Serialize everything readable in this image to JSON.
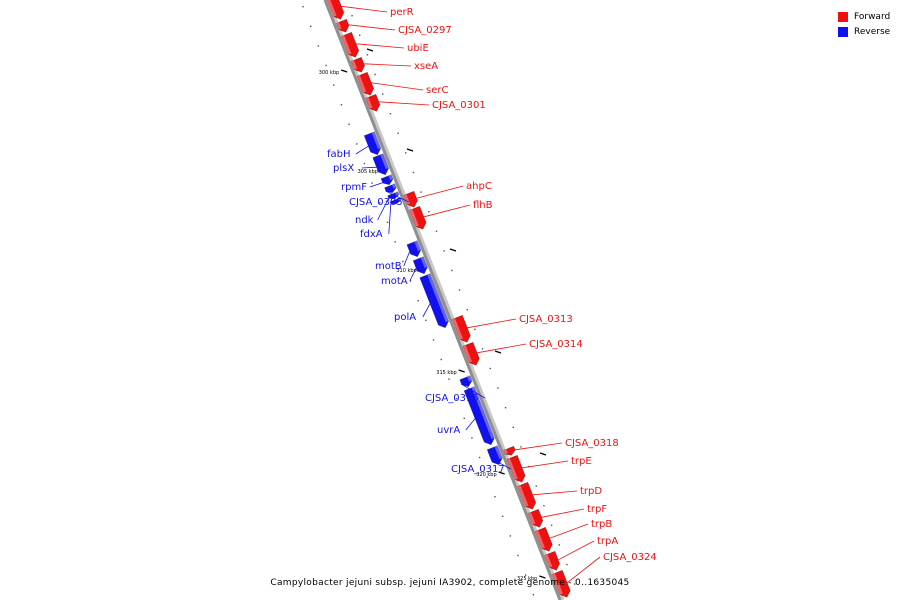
{
  "legend": {
    "forward_label": "Forward",
    "reverse_label": "Reverse",
    "forward_color": "#ee1111",
    "reverse_color": "#1111ee"
  },
  "caption": "Campylobacter jejuni subsp. jejuni IA3902, complete genome - 0..1635045",
  "ticks": [
    {
      "label": "300 kbp",
      "kbp": 300
    },
    {
      "label": "305 kbp",
      "kbp": 305
    },
    {
      "label": "310 kbp",
      "kbp": 310
    },
    {
      "label": "315 kbp",
      "kbp": 315
    },
    {
      "label": "320 kbp",
      "kbp": 320
    },
    {
      "label": "325 kbp",
      "kbp": 325
    }
  ],
  "genes": [
    {
      "name": "perR",
      "strand": "forward"
    },
    {
      "name": "CJSA_0297",
      "strand": "forward"
    },
    {
      "name": "ubiE",
      "strand": "forward"
    },
    {
      "name": "xseA",
      "strand": "forward"
    },
    {
      "name": "serC",
      "strand": "forward"
    },
    {
      "name": "CJSA_0301",
      "strand": "forward"
    },
    {
      "name": "fabH",
      "strand": "reverse"
    },
    {
      "name": "plsX",
      "strand": "reverse"
    },
    {
      "name": "rpmF",
      "strand": "reverse"
    },
    {
      "name": "CJSA_0305",
      "strand": "reverse"
    },
    {
      "name": "ndk",
      "strand": "reverse"
    },
    {
      "name": "fdxA",
      "strand": "reverse"
    },
    {
      "name": "ahpC",
      "strand": "forward"
    },
    {
      "name": "flhB",
      "strand": "forward"
    },
    {
      "name": "motB",
      "strand": "reverse"
    },
    {
      "name": "motA",
      "strand": "reverse"
    },
    {
      "name": "polA",
      "strand": "reverse"
    },
    {
      "name": "CJSA_0313",
      "strand": "forward"
    },
    {
      "name": "CJSA_0314",
      "strand": "forward"
    },
    {
      "name": "CJSA_0315",
      "strand": "reverse"
    },
    {
      "name": "uvrA",
      "strand": "reverse"
    },
    {
      "name": "CJSA_0317",
      "strand": "reverse"
    },
    {
      "name": "CJSA_0318",
      "strand": "forward"
    },
    {
      "name": "trpE",
      "strand": "forward"
    },
    {
      "name": "trpD",
      "strand": "forward"
    },
    {
      "name": "trpF",
      "strand": "forward"
    },
    {
      "name": "trpB",
      "strand": "forward"
    },
    {
      "name": "trpA",
      "strand": "forward"
    },
    {
      "name": "CJSA_0324",
      "strand": "forward"
    }
  ]
}
